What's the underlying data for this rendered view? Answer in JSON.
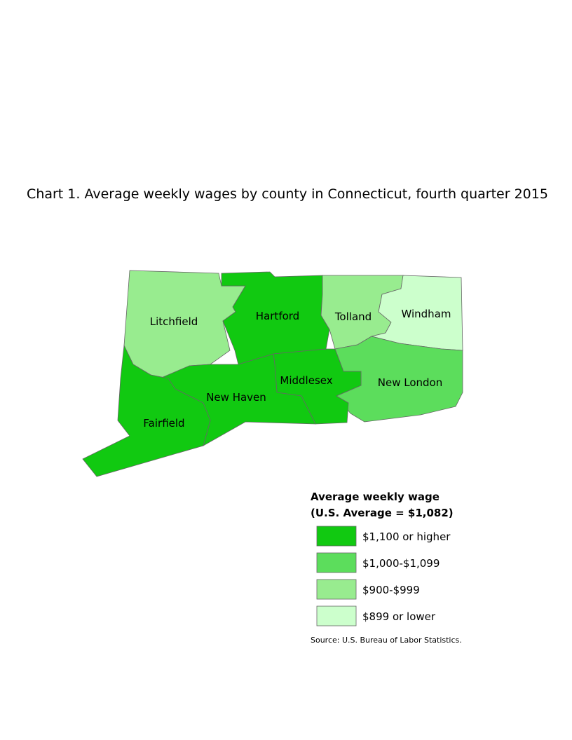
{
  "title": "Chart 1. Average weekly wages by county in Connecticut, fourth quarter 2015",
  "counties": [
    {
      "name": "Litchfield",
      "color": "#98ec8f"
    },
    {
      "name": "Hartford",
      "color": "#11c911"
    },
    {
      "name": "Tolland",
      "color": "#98ec8f"
    },
    {
      "name": "Windham",
      "color": "#ccffcc"
    },
    {
      "name": "New London",
      "color": "#5cdd5c"
    },
    {
      "name": "Middlesex",
      "color": "#11c911"
    },
    {
      "name": "New Haven",
      "color": "#11c911"
    },
    {
      "name": "Fairfield",
      "color": "#11c911"
    }
  ],
  "legend": {
    "title": [
      "Average weekly wage",
      "(U.S. Average = $1,082)"
    ],
    "items": [
      {
        "label": "$1,100 or higher",
        "color": "#11c911"
      },
      {
        "label": "$1,000-$1,099",
        "color": "#5cdd5c"
      },
      {
        "label": "$900-$999",
        "color": "#98ec8f"
      },
      {
        "label": "$899 or lower",
        "color": "#ccffcc"
      }
    ]
  },
  "source": "Source: U.S. Bureau of Labor Statistics."
}
